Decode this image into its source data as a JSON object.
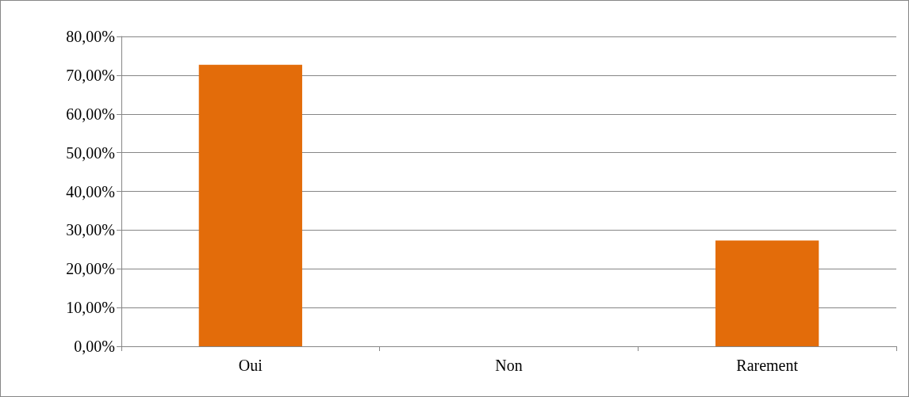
{
  "chart_data": {
    "type": "bar",
    "categories": [
      "Oui",
      "Non",
      "Rarement"
    ],
    "values": [
      72.7,
      0,
      27.3
    ],
    "color": "#e36c0a",
    "ylim": [
      0,
      80
    ],
    "yticks": [
      {
        "value": 0,
        "label": "0,00%"
      },
      {
        "value": 10,
        "label": "10,00%"
      },
      {
        "value": 20,
        "label": "20,00%"
      },
      {
        "value": 30,
        "label": "30,00%"
      },
      {
        "value": 40,
        "label": "40,00%"
      },
      {
        "value": 50,
        "label": "50,00%"
      },
      {
        "value": 60,
        "label": "60,00%"
      },
      {
        "value": 70,
        "label": "70,00%"
      },
      {
        "value": 80,
        "label": "80,00%"
      }
    ],
    "grid": "y"
  }
}
